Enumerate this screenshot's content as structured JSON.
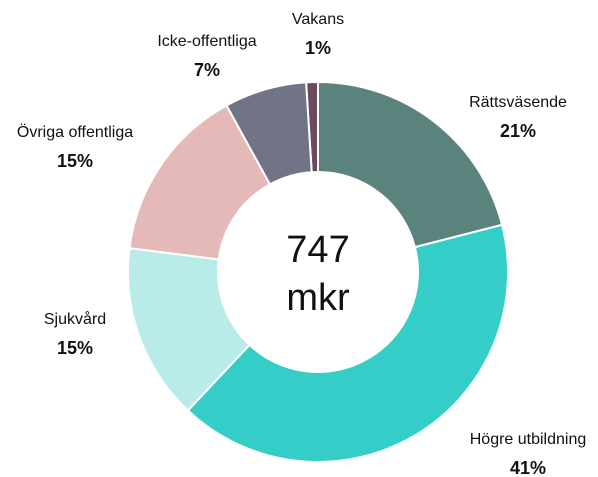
{
  "chart_data": {
    "type": "donut",
    "categories": [
      "Rättsväsende",
      "Högre utbildning",
      "Sjukvård",
      "Övriga offentliga",
      "Icke-offentliga",
      "Vakans"
    ],
    "values": [
      21,
      41,
      15,
      15,
      7,
      1
    ],
    "value_labels": [
      "21%",
      "41%",
      "15%",
      "15%",
      "7%",
      "1%"
    ],
    "colors": [
      "#5a837e",
      "#35cdc8",
      "#b9ece8",
      "#e6b9b9",
      "#717386",
      "#6b4a5e"
    ],
    "center_text": [
      "747",
      "mkr"
    ]
  }
}
